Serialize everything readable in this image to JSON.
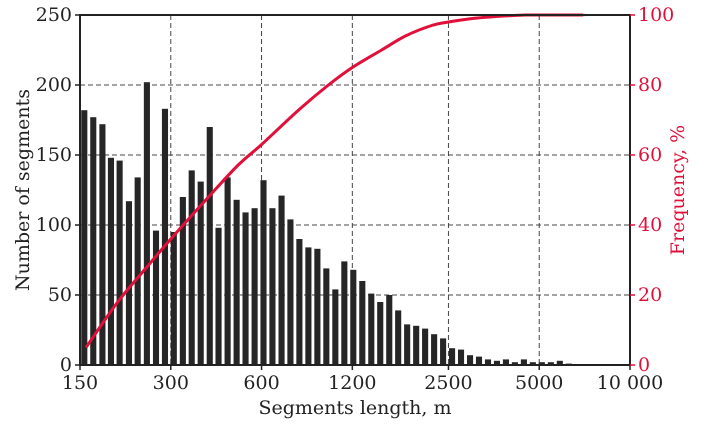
{
  "chart_data": {
    "type": "bar",
    "xlabel": "Segments length, m",
    "ylabel": "Number of segments",
    "y2label": "Frequency, %",
    "x_scale": "log",
    "xlim": [
      150,
      10000
    ],
    "ylim": [
      0,
      250
    ],
    "y2lim": [
      0,
      100
    ],
    "x_ticks": [
      150,
      300,
      600,
      1200,
      2500,
      5000,
      10000
    ],
    "x_tick_labels": [
      "150",
      "300",
      "600",
      "1200",
      "2500",
      "5000",
      "10 000"
    ],
    "y_ticks": [
      0,
      50,
      100,
      150,
      200,
      250
    ],
    "y2_ticks": [
      0,
      20,
      40,
      60,
      80,
      100
    ],
    "grid": true,
    "bar_color": "#262626",
    "curve_color": "#e0103a",
    "series": [
      {
        "type": "bar",
        "axis": "left",
        "x": [
          155,
          166,
          178,
          190,
          203,
          218,
          233,
          250,
          268,
          287,
          307,
          329,
          352,
          377,
          404,
          432,
          463,
          496,
          531,
          569,
          609,
          652,
          699,
          748,
          801,
          858,
          919,
          984,
          1054,
          1129,
          1209,
          1295,
          1387,
          1485,
          1591,
          1703,
          1824,
          1954,
          2092,
          2241,
          2400,
          2570,
          2752,
          2948,
          3157,
          3381,
          3621,
          3878,
          4153,
          4448,
          4763,
          5101,
          5463,
          5851,
          6266
        ],
        "values": [
          182,
          177,
          172,
          148,
          146,
          117,
          134,
          202,
          96,
          183,
          95,
          120,
          139,
          131,
          170,
          98,
          134,
          118,
          109,
          112,
          132,
          112,
          121,
          104,
          90,
          84,
          83,
          69,
          54,
          74,
          68,
          60,
          51,
          45,
          50,
          39,
          29,
          28,
          26,
          22,
          19,
          12,
          11,
          7,
          6,
          4,
          3,
          4,
          2,
          4,
          2,
          2,
          2,
          3,
          1
        ]
      },
      {
        "type": "line",
        "axis": "right",
        "x": [
          157,
          200,
          250,
          300,
          400,
          500,
          600,
          800,
          1000,
          1200,
          1500,
          1800,
          2200,
          2500,
          3000,
          3500,
          4000,
          4500,
          5000,
          6000,
          7000
        ],
        "values": [
          5,
          18,
          28,
          36,
          48,
          57,
          63,
          73,
          80,
          85,
          90,
          94,
          97,
          98,
          99,
          99.5,
          99.8,
          100,
          100,
          100,
          100
        ]
      }
    ]
  }
}
